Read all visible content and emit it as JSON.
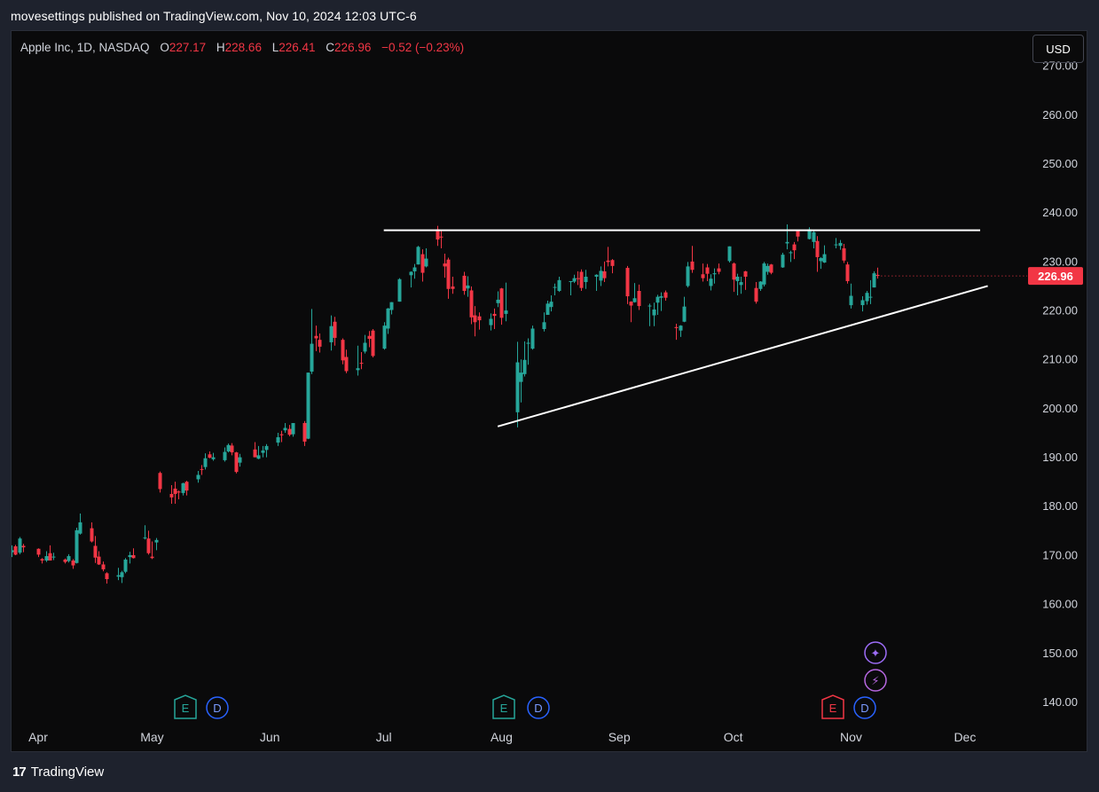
{
  "header": {
    "published": "movesettings published on TradingView.com, Nov 10, 2024 12:03 UTC-6"
  },
  "legend": {
    "symbol": "Apple Inc, 1D, NASDAQ",
    "o_label": "O",
    "o": "227.17",
    "h_label": "H",
    "h": "228.66",
    "l_label": "L",
    "l": "226.41",
    "c_label": "C",
    "c": "226.96",
    "change": "−0.52 (−0.23%)"
  },
  "currency_button": "USD",
  "price_tag": "226.96",
  "footer": {
    "brand": "TradingView",
    "logo_text": "17"
  },
  "colors": {
    "up": "#26a69a",
    "down": "#f23645",
    "line": "#ffffff",
    "background": "#0a0a0b"
  },
  "event_markers": [
    {
      "label": "E",
      "type": "earnings",
      "color": "#26a69a",
      "month": "May"
    },
    {
      "label": "D",
      "type": "dividend",
      "color": "#2962ff",
      "month": "May"
    },
    {
      "label": "E",
      "type": "earnings",
      "color": "#26a69a",
      "month": "Aug"
    },
    {
      "label": "D",
      "type": "dividend",
      "color": "#2962ff",
      "month": "Aug"
    },
    {
      "label": "E",
      "type": "earnings",
      "color": "#f23645",
      "month": "Nov"
    },
    {
      "label": "D",
      "type": "dividend",
      "color": "#2962ff",
      "month": "Nov"
    }
  ],
  "extra_icons": [
    {
      "label": "✦",
      "name": "ideas-icon",
      "color": "#9c6cf6"
    },
    {
      "label": "⚡",
      "name": "flash-icon",
      "color": "#b667e0"
    }
  ],
  "chart_data": {
    "type": "candlestick",
    "title": "Apple Inc, 1D, NASDAQ",
    "y_ticks": [
      "270.00",
      "260.00",
      "250.00",
      "240.00",
      "230.00",
      "220.00",
      "210.00",
      "200.00",
      "190.00",
      "180.00",
      "170.00",
      "160.00",
      "150.00",
      "140.00"
    ],
    "y_range": [
      136,
      277
    ],
    "x_labels": [
      "Apr",
      "May",
      "Jun",
      "Jul",
      "Aug",
      "Sep",
      "Oct",
      "Nov",
      "Dec"
    ],
    "x_range": [
      "2024-03-25",
      "2024-12-12"
    ],
    "last_close": 226.96,
    "candles_ohlc": [
      [
        "2024-03-25",
        170.5,
        171.9,
        169.5,
        170.9
      ],
      [
        "2024-03-26",
        171.7,
        172.0,
        169.9,
        170.0
      ],
      [
        "2024-03-27",
        170.4,
        173.6,
        170.1,
        173.3
      ],
      [
        "2024-03-28",
        171.8,
        172.2,
        170.5,
        171.5
      ],
      [
        "2024-04-01",
        171.2,
        171.3,
        169.5,
        170.0
      ],
      [
        "2024-04-02",
        169.1,
        169.3,
        168.2,
        168.8
      ],
      [
        "2024-04-03",
        168.8,
        170.7,
        168.5,
        169.7
      ],
      [
        "2024-04-04",
        170.3,
        171.9,
        168.8,
        168.8
      ],
      [
        "2024-04-05",
        169.6,
        170.4,
        168.9,
        169.6
      ],
      [
        "2024-04-08",
        169.0,
        169.2,
        168.2,
        168.5
      ],
      [
        "2024-04-09",
        168.7,
        170.1,
        168.4,
        169.7
      ],
      [
        "2024-04-10",
        168.8,
        169.1,
        167.1,
        167.8
      ],
      [
        "2024-04-11",
        168.3,
        175.5,
        168.2,
        175.0
      ],
      [
        "2024-04-12",
        174.3,
        178.4,
        174.1,
        176.6
      ],
      [
        "2024-04-15",
        175.4,
        176.6,
        172.5,
        172.7
      ],
      [
        "2024-04-16",
        171.8,
        173.8,
        168.3,
        169.4
      ],
      [
        "2024-04-17",
        169.6,
        170.7,
        167.9,
        168.0
      ],
      [
        "2024-04-18",
        168.0,
        168.6,
        166.6,
        167.0
      ],
      [
        "2024-04-19",
        166.2,
        166.4,
        164.1,
        165.0
      ],
      [
        "2024-04-22",
        165.5,
        167.3,
        164.8,
        165.8
      ],
      [
        "2024-04-23",
        165.4,
        166.7,
        164.2,
        166.4
      ],
      [
        "2024-04-24",
        166.5,
        169.3,
        166.2,
        169.0
      ],
      [
        "2024-04-25",
        169.5,
        170.6,
        168.2,
        169.9
      ],
      [
        "2024-04-26",
        169.9,
        171.3,
        169.2,
        169.3
      ],
      [
        "2024-04-29",
        173.4,
        176.0,
        173.1,
        173.5
      ],
      [
        "2024-04-30",
        173.3,
        174.9,
        170.0,
        170.3
      ],
      [
        "2024-05-01",
        169.6,
        172.7,
        169.1,
        169.3
      ],
      [
        "2024-05-02",
        172.5,
        173.4,
        170.9,
        173.0
      ],
      [
        "2024-05-03",
        186.7,
        187.0,
        182.7,
        183.4
      ],
      [
        "2024-05-06",
        182.4,
        184.2,
        180.4,
        181.7
      ],
      [
        "2024-05-07",
        183.5,
        184.9,
        180.4,
        182.4
      ],
      [
        "2024-05-08",
        182.9,
        183.1,
        181.3,
        182.7
      ],
      [
        "2024-05-09",
        182.6,
        184.7,
        182.1,
        184.6
      ],
      [
        "2024-05-10",
        184.9,
        185.1,
        182.1,
        183.1
      ],
      [
        "2024-05-13",
        185.4,
        187.1,
        184.7,
        186.3
      ],
      [
        "2024-05-14",
        187.5,
        188.3,
        186.3,
        187.4
      ],
      [
        "2024-05-15",
        187.9,
        190.7,
        187.4,
        189.7
      ],
      [
        "2024-05-16",
        190.5,
        191.1,
        189.7,
        189.8
      ],
      [
        "2024-05-17",
        189.5,
        190.8,
        189.2,
        189.9
      ],
      [
        "2024-05-20",
        189.3,
        191.9,
        189.0,
        191.0
      ],
      [
        "2024-05-21",
        191.1,
        192.7,
        190.9,
        192.4
      ],
      [
        "2024-05-22",
        192.3,
        192.8,
        190.3,
        190.9
      ],
      [
        "2024-05-23",
        190.9,
        191.0,
        186.6,
        186.9
      ],
      [
        "2024-05-24",
        188.8,
        190.6,
        188.0,
        189.9
      ],
      [
        "2024-05-28",
        191.5,
        193.0,
        189.9,
        189.9
      ],
      [
        "2024-05-29",
        189.6,
        192.2,
        189.5,
        190.3
      ],
      [
        "2024-05-30",
        190.8,
        192.2,
        189.9,
        191.3
      ],
      [
        "2024-05-31",
        191.4,
        192.6,
        189.9,
        192.2
      ],
      [
        "2024-06-03",
        192.9,
        194.9,
        192.2,
        194.0
      ],
      [
        "2024-06-04",
        194.6,
        195.3,
        193.0,
        194.4
      ],
      [
        "2024-06-05",
        195.4,
        196.9,
        194.9,
        195.9
      ],
      [
        "2024-06-06",
        195.7,
        196.5,
        194.2,
        194.5
      ],
      [
        "2024-06-07",
        194.6,
        196.9,
        194.1,
        196.9
      ],
      [
        "2024-06-10",
        196.9,
        197.3,
        192.2,
        193.1
      ],
      [
        "2024-06-11",
        193.7,
        207.2,
        193.6,
        207.2
      ],
      [
        "2024-06-12",
        207.4,
        220.2,
        206.9,
        213.1
      ],
      [
        "2024-06-13",
        214.7,
        216.8,
        211.6,
        214.2
      ],
      [
        "2024-06-14",
        213.9,
        215.2,
        211.3,
        212.5
      ],
      [
        "2024-06-17",
        213.4,
        218.9,
        211.7,
        216.7
      ],
      [
        "2024-06-18",
        217.6,
        218.6,
        212.7,
        214.3
      ],
      [
        "2024-06-20",
        213.9,
        214.2,
        208.9,
        209.7
      ],
      [
        "2024-06-21",
        210.4,
        211.9,
        207.1,
        207.5
      ],
      [
        "2024-06-24",
        207.7,
        212.7,
        206.6,
        208.1
      ],
      [
        "2024-06-25",
        209.2,
        211.4,
        207.9,
        209.1
      ],
      [
        "2024-06-26",
        211.5,
        214.9,
        211.1,
        213.3
      ],
      [
        "2024-06-27",
        214.7,
        215.7,
        212.4,
        214.1
      ],
      [
        "2024-06-28",
        215.8,
        216.1,
        210.3,
        210.6
      ],
      [
        "2024-07-01",
        212.1,
        217.5,
        211.9,
        216.8
      ],
      [
        "2024-07-02",
        216.2,
        220.4,
        215.1,
        220.3
      ],
      [
        "2024-07-03",
        220.0,
        221.6,
        219.1,
        221.6
      ],
      [
        "2024-07-05",
        221.7,
        226.5,
        221.7,
        226.3
      ],
      [
        "2024-07-08",
        227.1,
        227.9,
        224.6,
        227.8
      ],
      [
        "2024-07-09",
        227.9,
        229.4,
        226.4,
        228.7
      ],
      [
        "2024-07-10",
        229.3,
        233.1,
        229.3,
        232.9
      ],
      [
        "2024-07-11",
        231.4,
        232.4,
        225.8,
        227.6
      ],
      [
        "2024-07-12",
        228.9,
        232.6,
        228.7,
        230.5
      ],
      [
        "2024-07-15",
        236.5,
        237.2,
        233.1,
        234.4
      ],
      [
        "2024-07-16",
        235.0,
        236.3,
        232.6,
        234.8
      ],
      [
        "2024-07-17",
        229.5,
        231.5,
        226.6,
        228.9
      ],
      [
        "2024-07-18",
        230.3,
        230.7,
        222.3,
        224.3
      ],
      [
        "2024-07-19",
        224.8,
        226.8,
        223.3,
        224.3
      ],
      [
        "2024-07-22",
        227.0,
        227.8,
        223.1,
        223.9
      ],
      [
        "2024-07-23",
        224.4,
        226.9,
        222.7,
        225.0
      ],
      [
        "2024-07-24",
        224.0,
        224.8,
        217.1,
        218.5
      ],
      [
        "2024-07-25",
        218.9,
        220.8,
        214.6,
        217.5
      ],
      [
        "2024-07-26",
        218.7,
        219.5,
        216.0,
        217.9
      ],
      [
        "2024-07-29",
        216.9,
        219.3,
        215.8,
        218.2
      ],
      [
        "2024-07-30",
        219.2,
        220.3,
        216.1,
        218.8
      ],
      [
        "2024-07-31",
        221.4,
        223.8,
        220.6,
        222.1
      ],
      [
        "2024-08-01",
        224.4,
        224.5,
        217.0,
        218.4
      ],
      [
        "2024-08-02",
        219.2,
        225.6,
        217.7,
        219.9
      ],
      [
        "2024-08-05",
        199.1,
        213.5,
        196.0,
        209.3
      ],
      [
        "2024-08-06",
        205.3,
        209.9,
        201.1,
        207.2
      ],
      [
        "2024-08-07",
        206.9,
        213.6,
        206.4,
        209.8
      ],
      [
        "2024-08-08",
        213.1,
        214.2,
        208.8,
        213.3
      ],
      [
        "2024-08-09",
        212.1,
        216.8,
        211.9,
        216.2
      ],
      [
        "2024-08-12",
        216.1,
        219.5,
        215.6,
        217.5
      ],
      [
        "2024-08-13",
        219.0,
        221.9,
        219.0,
        221.3
      ],
      [
        "2024-08-14",
        220.6,
        223.0,
        219.7,
        221.7
      ],
      [
        "2024-08-15",
        224.6,
        225.4,
        223.0,
        224.7
      ],
      [
        "2024-08-16",
        223.9,
        226.8,
        223.7,
        226.1
      ],
      [
        "2024-08-19",
        225.7,
        225.9,
        223.0,
        225.9
      ],
      [
        "2024-08-20",
        225.8,
        227.2,
        225.5,
        226.5
      ],
      [
        "2024-08-21",
        226.5,
        227.9,
        225.1,
        226.4
      ],
      [
        "2024-08-22",
        227.8,
        228.3,
        223.9,
        224.5
      ],
      [
        "2024-08-23",
        225.7,
        228.2,
        224.3,
        226.8
      ],
      [
        "2024-08-26",
        226.8,
        227.3,
        223.9,
        227.2
      ],
      [
        "2024-08-27",
        226.0,
        228.9,
        224.9,
        228.0
      ],
      [
        "2024-08-28",
        227.9,
        229.9,
        225.7,
        226.5
      ],
      [
        "2024-08-29",
        230.1,
        232.9,
        228.9,
        229.8
      ],
      [
        "2024-08-30",
        230.2,
        230.4,
        227.5,
        229.0
      ],
      [
        "2024-09-03",
        228.6,
        229.0,
        221.2,
        222.8
      ],
      [
        "2024-09-04",
        221.7,
        221.8,
        217.5,
        220.9
      ],
      [
        "2024-09-05",
        221.6,
        225.5,
        221.5,
        222.4
      ],
      [
        "2024-09-06",
        223.9,
        225.2,
        220.0,
        220.8
      ],
      [
        "2024-09-09",
        220.8,
        221.3,
        216.7,
        220.9
      ],
      [
        "2024-09-10",
        218.9,
        221.5,
        216.7,
        220.1
      ],
      [
        "2024-09-11",
        221.5,
        223.1,
        219.0,
        222.7
      ],
      [
        "2024-09-12",
        222.5,
        223.6,
        219.8,
        222.8
      ],
      [
        "2024-09-13",
        223.6,
        224.0,
        221.9,
        222.5
      ],
      [
        "2024-09-16",
        216.5,
        217.2,
        213.9,
        216.3
      ],
      [
        "2024-09-17",
        215.8,
        216.9,
        214.5,
        216.8
      ],
      [
        "2024-09-18",
        217.6,
        222.7,
        217.5,
        220.7
      ],
      [
        "2024-09-19",
        224.9,
        229.8,
        224.6,
        228.9
      ],
      [
        "2024-09-20",
        229.9,
        233.1,
        227.6,
        228.2
      ],
      [
        "2024-09-23",
        227.3,
        229.5,
        225.8,
        226.5
      ],
      [
        "2024-09-24",
        228.7,
        229.4,
        225.9,
        227.4
      ],
      [
        "2024-09-25",
        224.9,
        227.3,
        224.0,
        226.4
      ],
      [
        "2024-09-26",
        227.3,
        228.5,
        225.4,
        227.5
      ],
      [
        "2024-09-27",
        228.5,
        229.5,
        227.3,
        227.8
      ],
      [
        "2024-09-30",
        230.0,
        233.0,
        229.7,
        233.0
      ],
      [
        "2024-10-01",
        229.5,
        229.7,
        223.7,
        226.2
      ],
      [
        "2024-10-02",
        225.9,
        227.4,
        223.0,
        226.8
      ],
      [
        "2024-10-03",
        225.1,
        226.8,
        223.3,
        225.7
      ],
      [
        "2024-10-04",
        227.9,
        228.0,
        224.1,
        226.8
      ],
      [
        "2024-10-07",
        224.5,
        225.7,
        221.3,
        221.7
      ],
      [
        "2024-10-08",
        224.3,
        225.9,
        223.9,
        225.8
      ],
      [
        "2024-10-09",
        225.2,
        229.8,
        224.8,
        229.5
      ],
      [
        "2024-10-10",
        227.8,
        229.5,
        227.2,
        229.0
      ],
      [
        "2024-10-11",
        229.3,
        229.4,
        227.3,
        227.6
      ],
      [
        "2024-10-14",
        228.7,
        231.7,
        228.6,
        231.3
      ],
      [
        "2024-10-15",
        233.6,
        237.5,
        232.4,
        233.9
      ],
      [
        "2024-10-16",
        231.6,
        232.1,
        229.8,
        231.8
      ],
      [
        "2024-10-17",
        233.4,
        233.9,
        230.4,
        232.2
      ],
      [
        "2024-10-18",
        236.2,
        236.2,
        234.0,
        235.0
      ],
      [
        "2024-10-21",
        234.5,
        236.9,
        234.4,
        236.5
      ],
      [
        "2024-10-22",
        233.9,
        236.2,
        232.6,
        235.9
      ],
      [
        "2024-10-23",
        234.1,
        235.1,
        227.8,
        230.8
      ],
      [
        "2024-10-24",
        229.98,
        230.8,
        228.4,
        230.6
      ],
      [
        "2024-10-25",
        229.7,
        233.2,
        229.6,
        231.4
      ],
      [
        "2024-10-28",
        233.3,
        234.7,
        232.6,
        233.4
      ],
      [
        "2024-10-29",
        233.1,
        234.3,
        232.3,
        233.7
      ],
      [
        "2024-10-30",
        232.6,
        233.5,
        229.6,
        230.1
      ],
      [
        "2024-10-31",
        229.3,
        229.8,
        225.4,
        225.9
      ],
      [
        "2024-11-01",
        220.97,
        225.4,
        220.3,
        222.9
      ],
      [
        "2024-11-04",
        220.99,
        222.8,
        219.7,
        222.0
      ],
      [
        "2024-11-05",
        221.8,
        223.9,
        221.1,
        223.5
      ],
      [
        "2024-11-06",
        222.6,
        226.1,
        221.2,
        222.7
      ],
      [
        "2024-11-07",
        224.6,
        227.9,
        224.6,
        227.5
      ],
      [
        "2024-11-08",
        227.17,
        228.66,
        226.41,
        226.96
      ]
    ],
    "annotations": [
      {
        "type": "horizontal_resistance",
        "from": "2024-07-01",
        "to": "2024-12-05",
        "y": 236.3
      },
      {
        "type": "ascending_trendline",
        "from": [
          "2024-07-31",
          196.2
        ],
        "to": [
          "2024-12-07",
          224.9
        ]
      }
    ]
  }
}
